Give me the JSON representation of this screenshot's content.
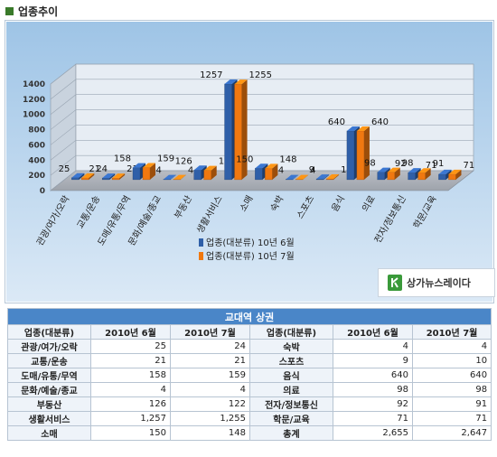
{
  "header": {
    "title": "업종추이",
    "mark_color": "#3a7a2a"
  },
  "chart_data": {
    "type": "bar",
    "categories": [
      "관광/여가/오락",
      "교통/운송",
      "도매/유통/무역",
      "문화/예술/종교",
      "부동산",
      "생활서비스",
      "소매",
      "숙박",
      "스포츠",
      "음식",
      "의료",
      "전자/정보통신",
      "학문/교육"
    ],
    "series": [
      {
        "name": "업종(대분류) 10년 6월",
        "color": "#2f5fa8",
        "values": [
          25,
          21,
          158,
          4,
          126,
          1257,
          150,
          4,
          9,
          640,
          98,
          92,
          71
        ]
      },
      {
        "name": "업종(대분류) 10년 7월",
        "color": "#f07810",
        "values": [
          24,
          21,
          159,
          4,
          122,
          1255,
          148,
          4,
          10,
          640,
          98,
          91,
          71
        ]
      }
    ],
    "ylim": [
      0,
      1400
    ],
    "yticks": [
      0,
      200,
      400,
      600,
      800,
      1000,
      1200,
      1400
    ],
    "legend_position": "bottom-right",
    "grid": true
  },
  "logo": {
    "text": "상가뉴스레이다"
  },
  "table": {
    "caption": "교대역 상권",
    "headers": [
      "업종(대분류)",
      "2010년 6월",
      "2010년 7월",
      "업종(대분류)",
      "2010년 6월",
      "2010년 7월"
    ],
    "rows": [
      [
        "관광/여가/오락",
        "25",
        "24",
        "숙박",
        "4",
        "4"
      ],
      [
        "교통/운송",
        "21",
        "21",
        "스포츠",
        "9",
        "10"
      ],
      [
        "도매/유통/무역",
        "158",
        "159",
        "음식",
        "640",
        "640"
      ],
      [
        "문화/예술/종교",
        "4",
        "4",
        "의료",
        "98",
        "98"
      ],
      [
        "부동산",
        "126",
        "122",
        "전자/정보통신",
        "92",
        "91"
      ],
      [
        "생활서비스",
        "1,257",
        "1,255",
        "학문/교육",
        "71",
        "71"
      ],
      [
        "소매",
        "150",
        "148",
        "총계",
        "2,655",
        "2,647"
      ]
    ]
  }
}
